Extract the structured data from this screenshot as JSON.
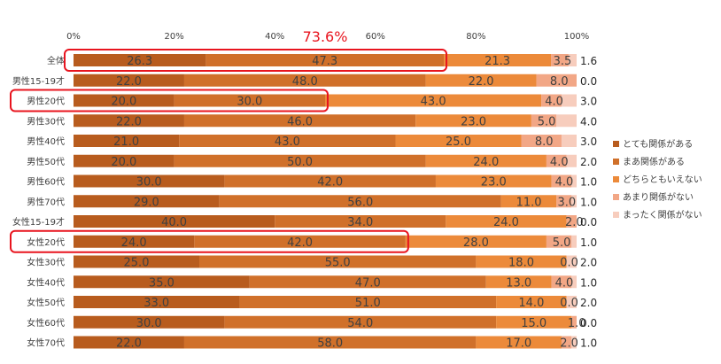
{
  "chart_data": {
    "type": "bar",
    "orientation": "horizontal",
    "stacked": "percent",
    "xlim": [
      0,
      100
    ],
    "x_ticks": [
      "0%",
      "20%",
      "40%",
      "60%",
      "80%",
      "100%"
    ],
    "grid": false,
    "legend_position": "right",
    "categories": [
      "全体",
      "男性15-19才",
      "男性20代",
      "男性30代",
      "男性40代",
      "男性50代",
      "男性60代",
      "男性70代",
      "女性15-19才",
      "女性20代",
      "女性30代",
      "女性40代",
      "女性50代",
      "女性60代",
      "女性70代"
    ],
    "series": [
      {
        "name": "とても関係がある",
        "color": "#b85c1e",
        "values": [
          26.3,
          22.0,
          20.0,
          22.0,
          21.0,
          20.0,
          30.0,
          29.0,
          40.0,
          24.0,
          25.0,
          35.0,
          33.0,
          30.0,
          22.0
        ]
      },
      {
        "name": "まあ関係がある",
        "color": "#d0702a",
        "values": [
          47.3,
          48.0,
          30.0,
          46.0,
          43.0,
          50.0,
          42.0,
          56.0,
          34.0,
          42.0,
          55.0,
          47.0,
          51.0,
          54.0,
          58.0
        ]
      },
      {
        "name": "どちらともいえない",
        "color": "#ec8a3a",
        "values": [
          21.3,
          22.0,
          43.0,
          23.0,
          25.0,
          24.0,
          23.0,
          11.0,
          24.0,
          28.0,
          18.0,
          13.0,
          14.0,
          15.0,
          17.0
        ]
      },
      {
        "name": "あまり関係がない",
        "color": "#f2a786",
        "values": [
          3.5,
          8.0,
          4.0,
          5.0,
          8.0,
          4.0,
          4.0,
          3.0,
          2.0,
          5.0,
          0.0,
          4.0,
          0.0,
          1.0,
          2.0
        ]
      },
      {
        "name": "まったく関係がない",
        "color": "#f7cdbd",
        "values": [
          1.6,
          0.0,
          3.0,
          4.0,
          3.0,
          2.0,
          1.0,
          1.0,
          0.0,
          1.0,
          2.0,
          1.0,
          2.0,
          0.0,
          1.0
        ]
      }
    ],
    "value_labels": [
      [
        "26.3",
        "47.3",
        "21.3",
        "3.5",
        "1.6"
      ],
      [
        "22.0",
        "48.0",
        "22.0",
        "8.0",
        "0.0"
      ],
      [
        "20.0",
        "30.0",
        "43.0",
        "4.0",
        "3.0"
      ],
      [
        "22.0",
        "46.0",
        "23.0",
        "5.0",
        "4.0"
      ],
      [
        "21.0",
        "43.0",
        "25.0",
        "8.0",
        "3.0"
      ],
      [
        "20.0",
        "50.0",
        "24.0",
        "4.0",
        "2.0"
      ],
      [
        "30.0",
        "42.0",
        "23.0",
        "4.0",
        "1.0"
      ],
      [
        "29.0",
        "56.0",
        "11.0",
        "3.0",
        "1.0"
      ],
      [
        "40.0",
        "34.0",
        "24.0",
        "2.0",
        "0.0"
      ],
      [
        "24.0",
        "42.0",
        "28.0",
        "5.0",
        "1.0"
      ],
      [
        "25.0",
        "55.0",
        "18.0",
        "0.0",
        "2.0"
      ],
      [
        "35.0",
        "47.0",
        "13.0",
        "4.0",
        "1.0"
      ],
      [
        "33.0",
        "51.0",
        "14.0",
        "0.0",
        "2.0"
      ],
      [
        "30.0",
        "54.0",
        "15.0",
        "1.0",
        "0.0"
      ],
      [
        "22.0",
        "58.0",
        "17.0",
        "2.0",
        "1.0"
      ]
    ],
    "annotations": [
      {
        "text": "73.6%",
        "color": "#e8141e"
      }
    ],
    "highlighted_categories": [
      "全体",
      "男性20代",
      "女性20代"
    ],
    "highlight_color": "#e8141e"
  }
}
